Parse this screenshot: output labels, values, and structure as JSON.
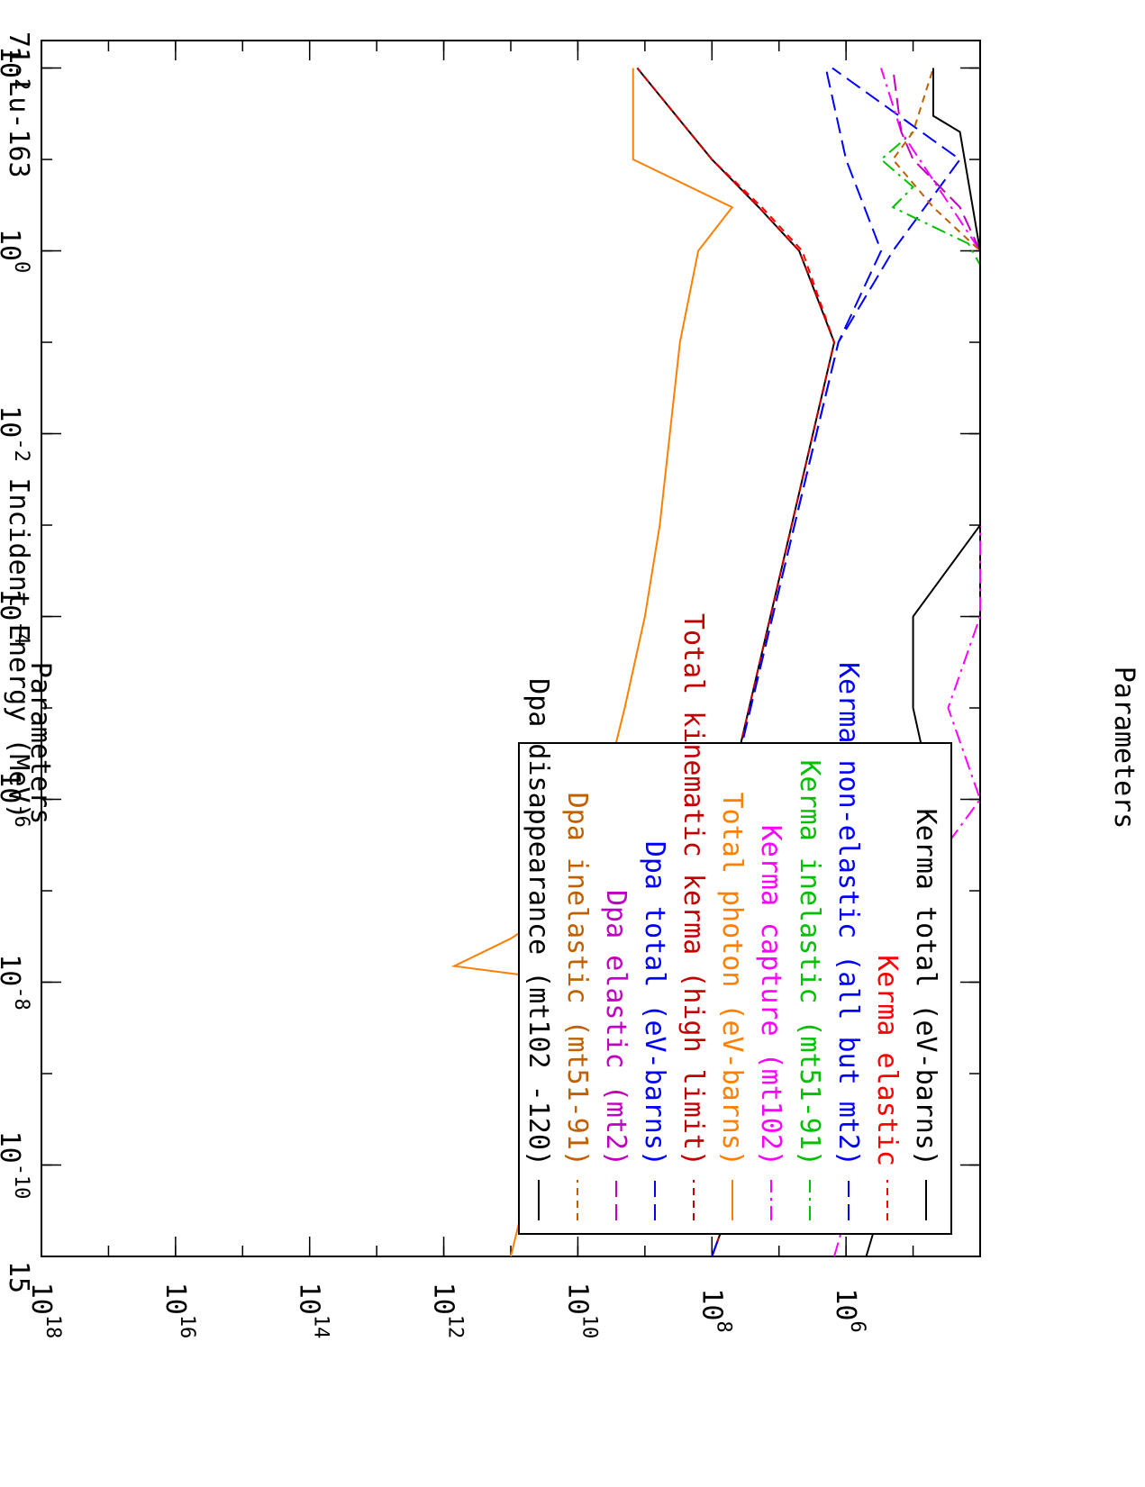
{
  "chart_data": {
    "type": "line",
    "title": "Parameters",
    "xlabel": "Incident Energy (MeV)",
    "ylabel": "Parameters",
    "corner_label": "71-Lu-163",
    "page_number": "15",
    "x_scale": "log",
    "y_scale": "log",
    "xlim": [
      1e-11,
      200
    ],
    "ylim": [
      10000.0,
      1e+18
    ],
    "x_ticks": [
      {
        "base": "10",
        "exp": "-10"
      },
      {
        "base": "10",
        "exp": "-8"
      },
      {
        "base": "10",
        "exp": "-6"
      },
      {
        "base": "10",
        "exp": "-4"
      },
      {
        "base": "10",
        "exp": "-2"
      },
      {
        "base": "10",
        "exp": "0"
      },
      {
        "base": "10",
        "exp": "2"
      }
    ],
    "y_ticks": [
      {
        "base": "10",
        "exp": "6"
      },
      {
        "base": "10",
        "exp": "8"
      },
      {
        "base": "10",
        "exp": "10"
      },
      {
        "base": "10",
        "exp": "12"
      },
      {
        "base": "10",
        "exp": "14"
      },
      {
        "base": "10",
        "exp": "16"
      },
      {
        "base": "10",
        "exp": "18"
      }
    ],
    "legend_position": "top-left",
    "series": [
      {
        "name": "Kerma total  (eV-barns)",
        "color": "#000000",
        "dash": "solid",
        "x": [
          1e-11,
          1e-08,
          1.5e-08,
          2.5e-08,
          5e-08,
          0.1,
          1,
          3,
          10,
          100
        ],
        "y": [
          100000000.0,
          3200000.0,
          5000000.0,
          2200000.0,
          150000000.0,
          1500000.0,
          5000000.0,
          20000000.0,
          100000000.0,
          1300000000.0
        ]
      },
      {
        "name": "Kerma elastic",
        "color": "#ff0000",
        "dash": "dash",
        "x": [
          1e-11,
          1e-08,
          1.5e-08,
          2.5e-08,
          5e-08,
          0.1,
          1,
          3,
          10,
          100
        ],
        "y": [
          100000000.0,
          3200000.0,
          5000000.0,
          2200000.0,
          150000000.0,
          1500000.0,
          4500000.0,
          18000000.0,
          100000000.0,
          1300000000.0
        ]
      },
      {
        "name": "Kerma non-elastic (all but mt2)",
        "color": "#0000ff",
        "dash": "longdash",
        "x": [
          1e-11,
          1e-08,
          1.5e-08,
          2.5e-08,
          5e-08,
          0.1,
          1,
          10,
          100
        ],
        "y": [
          100000000.0,
          3200000.0,
          5000000.0,
          2200000.0,
          150000000.0,
          1300000.0,
          200000.0,
          20000.0,
          1600000.0
        ]
      },
      {
        "name": "Kerma inelastic (mt51-91)",
        "color": "#00c000",
        "dash": "dashdot",
        "x": [
          0.3,
          0.7,
          1.2,
          3,
          5,
          10,
          20
        ],
        "y": [
          10000.0,
          10000.0,
          15000.0,
          200000.0,
          100000.0,
          300000.0,
          100000.0
        ]
      },
      {
        "name": "Kerma capture (mt102)",
        "color": "#ff00ff",
        "dash": "dashdot",
        "x": [
          1e-11,
          1e-08,
          1.5e-08,
          2.5e-08,
          5e-08,
          1e-06,
          1e-05,
          0.0001,
          1,
          20,
          100
        ],
        "y": [
          1500000.0,
          100000.0,
          250000.0,
          60000.0,
          200000.0,
          10000.0,
          30000.0,
          10000.0,
          10000.0,
          150000.0,
          300000.0
        ]
      },
      {
        "name": "Total photon (eV-barns)",
        "color": "#ff8000",
        "dash": "solid",
        "x": [
          1e-11,
          1e-08,
          1.5e-08,
          3e-08,
          1e-07,
          1e-06,
          3e-06,
          1e-05,
          0.0001,
          0.001,
          0.1,
          1,
          3,
          10,
          100
        ],
        "y": [
          100000000000.0,
          10000000000.0,
          700000000000.0,
          100000000000.0,
          8000000000.0,
          300000000.0,
          3000000000.0,
          2000000000.0,
          1000000000.0,
          600000000.0,
          300000000.0,
          160000000.0,
          50000000.0,
          1500000000.0,
          1500000000.0
        ]
      },
      {
        "name": "Total kinematic kerma (high limit)",
        "color": "#c00000",
        "dash": "dash",
        "x": [
          1e-11,
          1e-08,
          1.5e-08,
          2.5e-08,
          5e-08,
          0.1,
          1,
          3,
          10,
          100
        ],
        "y": [
          100000000.0,
          3200000.0,
          5000000.0,
          2200000.0,
          150000000.0,
          1500000.0,
          5000000.0,
          20000000.0,
          100000000.0,
          1300000000.0
        ]
      },
      {
        "name": "Dpa total (eV-barns)",
        "color": "#0000ff",
        "dash": "longdash",
        "x": [
          1e-11,
          1e-08,
          1.5e-08,
          2.5e-08,
          5e-08,
          0.1,
          1,
          10,
          100
        ],
        "y": [
          100000000.0,
          3200000.0,
          5000000.0,
          2200000.0,
          150000000.0,
          1300000.0,
          300000.0,
          1000000.0,
          2000000.0
        ]
      },
      {
        "name": "Dpa elastic (mt2)",
        "color": "#c000c0",
        "dash": "longdash",
        "x": [
          0.3,
          1,
          3,
          10,
          20,
          100
        ],
        "y": [
          10000.0,
          10000.0,
          20000.0,
          100000.0,
          150000.0,
          200000.0
        ]
      },
      {
        "name": "Dpa inelastic (mt51-91)",
        "color": "#c06000",
        "dash": "dash",
        "x": [
          0.3,
          1,
          3,
          10,
          20,
          100
        ],
        "y": [
          10000.0,
          10000.0,
          50000.0,
          200000.0,
          100000.0,
          50000.0
        ]
      },
      {
        "name": "Dpa disappearance (mt102 -120)",
        "color": "#000000",
        "dash": "solid",
        "x": [
          1e-11,
          1e-08,
          1.5e-08,
          2.5e-08,
          5e-08,
          1e-06,
          1e-05,
          0.0001,
          0.001,
          1,
          20,
          30,
          100
        ],
        "y": [
          500000.0,
          30000.0,
          150000.0,
          30000.0,
          200000.0,
          50000.0,
          100000.0,
          100000.0,
          10000.0,
          10000.0,
          20000.0,
          50000.0,
          50000.0
        ]
      }
    ]
  }
}
